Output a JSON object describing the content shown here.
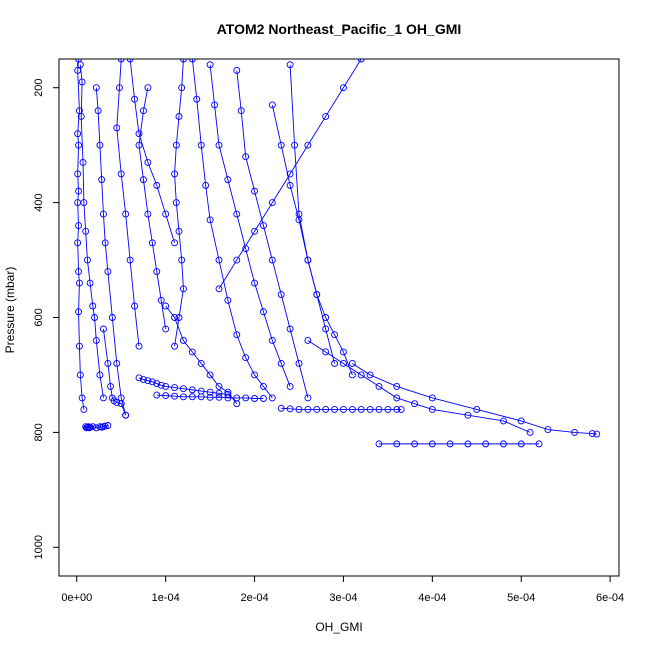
{
  "chart_data": {
    "type": "scatter",
    "title": "ATOM2 Northeast_Pacific_1 OH_GMI",
    "xlabel": "OH_GMI",
    "ylabel": "Pressure (mbar)",
    "xlim": [
      -2e-05,
      0.00061
    ],
    "ylim": [
      1050,
      150
    ],
    "y_reversed": true,
    "x_ticks": [
      0,
      0.0001,
      0.0002,
      0.0003,
      0.0004,
      0.0005,
      0.0006
    ],
    "x_tick_labels": [
      "0e+00",
      "1e-04",
      "2e-04",
      "3e-04",
      "4e-04",
      "5e-04",
      "6e-04"
    ],
    "y_ticks": [
      200,
      400,
      600,
      800,
      1000
    ],
    "y_tick_labels": [
      "200",
      "400",
      "600",
      "800",
      "1000"
    ],
    "series_color": "#0000ff",
    "marker": "open-circle",
    "lines_connected": true,
    "grid": false,
    "series": [
      {
        "x": [
          2e-06,
          1e-06,
          3e-06,
          1e-06,
          2e-06,
          1e-06,
          2e-06,
          1e-06,
          2e-06,
          1e-06,
          2e-06,
          3e-06,
          2e-06,
          3e-06,
          4e-06,
          6e-06,
          8e-06
        ],
        "y": [
          150,
          170,
          240,
          280,
          300,
          350,
          380,
          400,
          440,
          470,
          520,
          540,
          590,
          650,
          700,
          740,
          760
        ]
      },
      {
        "x": [
          4e-06,
          6e-06,
          5e-06,
          7e-06,
          8e-06,
          1e-05,
          1.2e-05,
          1.5e-05,
          1.8e-05,
          2e-05,
          2.2e-05,
          2.6e-05,
          3e-05
        ],
        "y": [
          160,
          190,
          250,
          330,
          400,
          450,
          500,
          540,
          580,
          600,
          640,
          700,
          740
        ]
      },
      {
        "x": [
          1e-05,
          1.1e-05,
          1.2e-05,
          1.3e-05,
          1.4e-05,
          1.5e-05,
          1.8e-05,
          2.2e-05,
          2.6e-05,
          2.8e-05,
          3e-05,
          3.2e-05,
          3.5e-05
        ],
        "y": [
          790,
          792,
          791,
          790,
          792,
          791,
          790,
          792,
          790,
          791,
          790,
          789,
          788
        ]
      },
      {
        "x": [
          2.2e-05,
          2.4e-05,
          2.6e-05,
          2.8e-05,
          3e-05,
          3.2e-05,
          3.5e-05,
          4e-05,
          4.5e-05,
          5e-05,
          5.5e-05
        ],
        "y": [
          200,
          240,
          300,
          360,
          420,
          470,
          520,
          600,
          680,
          740,
          770
        ]
      },
      {
        "x": [
          5e-05,
          4.8e-05,
          4.5e-05,
          5e-05,
          5.5e-05,
          6e-05,
          6.5e-05,
          7e-05
        ],
        "y": [
          150,
          200,
          270,
          350,
          420,
          500,
          580,
          650
        ]
      },
      {
        "x": [
          8e-05,
          7.5e-05,
          7e-05,
          7.5e-05,
          8e-05,
          8.5e-05,
          9e-05,
          9.5e-05,
          0.0001
        ],
        "y": [
          200,
          240,
          300,
          360,
          420,
          470,
          520,
          570,
          620
        ]
      },
      {
        "x": [
          6e-05,
          6.5e-05,
          7e-05,
          8e-05,
          9e-05,
          0.0001,
          0.00011
        ],
        "y": [
          150,
          220,
          280,
          330,
          370,
          420,
          470
        ]
      },
      {
        "x": [
          0.00012,
          0.000118,
          0.000115,
          0.000112,
          0.00011,
          0.000112,
          0.000115,
          0.000118,
          0.00012,
          0.000115,
          0.00011
        ],
        "y": [
          150,
          200,
          250,
          300,
          350,
          400,
          450,
          500,
          550,
          600,
          650
        ]
      },
      {
        "x": [
          7e-05,
          7.5e-05,
          8e-05,
          8.5e-05,
          9e-05,
          9.5e-05,
          0.0001,
          0.00011,
          0.00012,
          0.00013,
          0.00014,
          0.00015,
          0.00016,
          0.00017
        ],
        "y": [
          705,
          708,
          710,
          712,
          715,
          718,
          720,
          722,
          724,
          726,
          728,
          730,
          732,
          734
        ]
      },
      {
        "x": [
          9e-05,
          0.0001,
          0.00011,
          0.00012,
          0.00013,
          0.00014,
          0.00015,
          0.00016,
          0.00017,
          0.00018,
          0.00019,
          0.0002,
          0.00021
        ],
        "y": [
          735,
          736,
          737,
          738,
          738,
          738,
          739,
          739,
          740,
          740,
          740,
          741,
          741
        ]
      },
      {
        "x": [
          0.00013,
          0.000135,
          0.00014,
          0.000145,
          0.00015,
          0.00016,
          0.00017,
          0.00018,
          0.00019,
          0.0002,
          0.00021,
          0.00022
        ],
        "y": [
          150,
          220,
          300,
          370,
          430,
          500,
          570,
          630,
          670,
          700,
          720,
          740
        ]
      },
      {
        "x": [
          0.00015,
          0.000155,
          0.00016,
          0.00017,
          0.00018,
          0.00019,
          0.0002,
          0.00021,
          0.00022,
          0.00023,
          0.00024
        ],
        "y": [
          160,
          230,
          300,
          360,
          420,
          480,
          540,
          590,
          640,
          680,
          720
        ]
      },
      {
        "x": [
          0.00018,
          0.000185,
          0.00019,
          0.0002,
          0.00021,
          0.00022,
          0.00023,
          0.00024,
          0.00025,
          0.00026
        ],
        "y": [
          170,
          240,
          320,
          380,
          440,
          500,
          560,
          620,
          680,
          740
        ]
      },
      {
        "x": [
          0.00022,
          0.00023,
          0.00024,
          0.00025,
          0.00026,
          0.00027,
          0.00028,
          0.00029
        ],
        "y": [
          230,
          300,
          370,
          430,
          500,
          560,
          620,
          680
        ]
      },
      {
        "x": [
          0.00032,
          0.0003,
          0.00028,
          0.00026,
          0.00024,
          0.00022,
          0.0002,
          0.00018,
          0.00016
        ],
        "y": [
          150,
          200,
          250,
          300,
          350,
          400,
          450,
          500,
          550
        ]
      },
      {
        "x": [
          0.00024,
          0.000245,
          0.00025,
          0.00026,
          0.00027,
          0.00028,
          0.00029,
          0.0003,
          0.00031
        ],
        "y": [
          160,
          300,
          420,
          500,
          560,
          600,
          630,
          660,
          700
        ]
      },
      {
        "x": [
          0.00023,
          0.00024,
          0.00025,
          0.00026,
          0.00027,
          0.00028,
          0.00029,
          0.0003,
          0.00031,
          0.00032,
          0.00033,
          0.00034,
          0.00035,
          0.00036,
          0.000365
        ],
        "y": [
          758,
          759,
          760,
          760,
          760,
          760,
          760,
          760,
          760,
          760,
          760,
          760,
          760,
          760,
          760
        ]
      },
      {
        "x": [
          0.00031,
          0.00033,
          0.00036,
          0.0004,
          0.00045,
          0.0005,
          0.00053,
          0.00056,
          0.00058,
          0.000585
        ],
        "y": [
          680,
          700,
          720,
          740,
          760,
          780,
          795,
          800,
          802,
          803
        ]
      },
      {
        "x": [
          0.00034,
          0.00036,
          0.00038,
          0.0004,
          0.00042,
          0.00044,
          0.00046,
          0.00048,
          0.0005,
          0.00052
        ],
        "y": [
          820,
          820,
          820,
          820,
          820,
          820,
          820,
          820,
          820,
          820
        ]
      },
      {
        "x": [
          0.00026,
          0.00028,
          0.0003,
          0.00032,
          0.00034,
          0.00036,
          0.00038,
          0.0004,
          0.00044,
          0.00048,
          0.00051
        ],
        "y": [
          640,
          660,
          680,
          700,
          720,
          740,
          750,
          760,
          770,
          780,
          800
        ]
      },
      {
        "x": [
          3e-05,
          3.5e-05,
          3.8e-05,
          4e-05,
          4.2e-05,
          4.5e-05,
          5e-05,
          5.5e-05
        ],
        "y": [
          620,
          680,
          720,
          740,
          745,
          748,
          750,
          770
        ]
      },
      {
        "x": [
          0.0001,
          0.00011,
          0.00012,
          0.00013,
          0.00014,
          0.00015,
          0.00016,
          0.00017,
          0.00018
        ],
        "y": [
          580,
          600,
          640,
          660,
          680,
          700,
          720,
          730,
          750
        ]
      }
    ]
  }
}
